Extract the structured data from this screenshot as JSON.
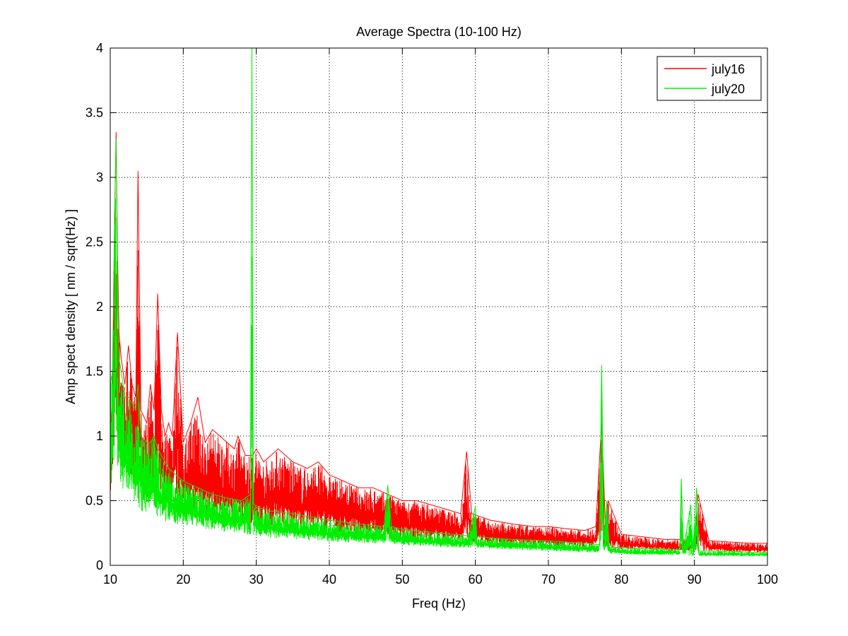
{
  "figure_background": "#ffffff",
  "chart_data": {
    "type": "line",
    "title": "Average Spectra (10-100 Hz)",
    "xlabel": "Freq (Hz)",
    "ylabel": "Amp spect density [ nm / sqrt(Hz) ]",
    "xlim": [
      10,
      100
    ],
    "ylim": [
      0,
      4
    ],
    "x_ticks": [
      10,
      20,
      30,
      40,
      50,
      60,
      70,
      80,
      90,
      100
    ],
    "y_ticks": [
      0,
      0.5,
      1,
      1.5,
      2,
      2.5,
      3,
      3.5,
      4
    ],
    "x_tick_labels": [
      "10",
      "20",
      "30",
      "40",
      "50",
      "60",
      "70",
      "80",
      "90",
      "100"
    ],
    "y_tick_labels": [
      "0",
      "0.5",
      "1",
      "1.5",
      "2",
      "2.5",
      "3",
      "3.5",
      "4"
    ],
    "grid": true,
    "grid_style": "dotted",
    "legend_position": "top-right",
    "series": [
      {
        "name": "july16",
        "color": "#ff0000",
        "x": [
          10,
          10.3,
          10.6,
          10.8,
          11,
          11.2,
          11.5,
          12,
          12.5,
          13,
          13.5,
          13.8,
          14.2,
          15,
          15.5,
          16,
          16.5,
          17,
          17.5,
          18,
          18.5,
          19.2,
          20,
          21,
          22,
          23,
          24,
          25,
          26,
          27,
          27.5,
          28.5,
          29.5,
          30,
          31,
          32,
          33,
          35,
          37,
          38.5,
          40,
          42,
          44,
          46,
          48,
          50,
          52,
          55,
          58,
          58.8,
          59.5,
          62,
          65,
          68,
          70,
          73,
          75,
          76.5,
          77.3,
          77.8,
          78.2,
          80,
          83,
          86,
          88,
          90,
          90.5,
          92,
          95,
          98,
          100
        ],
        "upper": [
          0.9,
          1.3,
          2.7,
          3.35,
          2.4,
          1.8,
          1.6,
          1.4,
          1.7,
          1.4,
          1.3,
          3.05,
          1.2,
          1.1,
          1.4,
          1.2,
          2.1,
          1.2,
          1.0,
          1.1,
          1.0,
          1.8,
          0.95,
          1.1,
          1.3,
          0.95,
          1.05,
          1.0,
          0.95,
          0.9,
          1.0,
          0.85,
          0.85,
          0.9,
          0.8,
          0.85,
          0.9,
          0.8,
          0.75,
          0.8,
          0.7,
          0.65,
          0.6,
          0.6,
          0.55,
          0.5,
          0.5,
          0.45,
          0.4,
          0.88,
          0.4,
          0.35,
          0.32,
          0.3,
          0.3,
          0.28,
          0.27,
          0.3,
          1.12,
          0.3,
          0.5,
          0.24,
          0.22,
          0.2,
          0.2,
          0.19,
          0.55,
          0.19,
          0.18,
          0.17,
          0.17
        ],
        "lower": [
          0.5,
          0.6,
          0.85,
          0.95,
          0.95,
          0.9,
          0.85,
          0.75,
          0.7,
          0.7,
          0.65,
          0.7,
          0.55,
          0.5,
          0.55,
          0.55,
          0.55,
          0.5,
          0.48,
          0.48,
          0.46,
          0.46,
          0.4,
          0.38,
          0.37,
          0.36,
          0.35,
          0.34,
          0.33,
          0.33,
          0.33,
          0.32,
          0.32,
          0.31,
          0.3,
          0.29,
          0.29,
          0.28,
          0.27,
          0.26,
          0.26,
          0.25,
          0.24,
          0.23,
          0.22,
          0.21,
          0.2,
          0.19,
          0.18,
          0.18,
          0.18,
          0.17,
          0.16,
          0.15,
          0.15,
          0.14,
          0.14,
          0.14,
          0.14,
          0.13,
          0.13,
          0.12,
          0.12,
          0.11,
          0.11,
          0.11,
          0.11,
          0.11,
          0.1,
          0.1,
          0.1
        ]
      },
      {
        "name": "july20",
        "color": "#00ee00",
        "x": [
          10,
          10.3,
          10.6,
          10.8,
          11,
          11.2,
          11.5,
          12,
          12.5,
          13,
          13.5,
          13.8,
          14.2,
          15,
          15.5,
          16,
          16.5,
          17,
          17.5,
          18,
          19,
          20,
          22,
          24,
          26,
          28,
          29.2,
          29.4,
          29.6,
          30,
          32,
          35,
          38,
          40,
          44,
          47.5,
          48,
          48.5,
          50,
          55,
          59,
          60,
          60.2,
          65,
          70,
          75,
          77,
          77.3,
          77.6,
          78,
          78.3,
          79,
          82,
          85,
          88,
          88.2,
          88.5,
          89.5,
          89.8,
          90.3,
          90.6,
          92,
          95,
          98,
          100
        ],
        "upper": [
          1.4,
          1.5,
          2.7,
          3.3,
          2.2,
          1.6,
          1.5,
          1.3,
          1.3,
          1.25,
          1.2,
          1.4,
          1.0,
          0.95,
          0.95,
          1.0,
          0.9,
          0.85,
          0.8,
          0.75,
          0.7,
          0.65,
          0.6,
          0.55,
          0.52,
          0.5,
          0.55,
          4.0,
          0.48,
          0.45,
          0.42,
          0.4,
          0.37,
          0.35,
          0.32,
          0.3,
          0.62,
          0.3,
          0.28,
          0.25,
          0.23,
          0.45,
          0.22,
          0.2,
          0.19,
          0.17,
          0.16,
          1.55,
          0.2,
          0.5,
          0.16,
          0.14,
          0.13,
          0.13,
          0.12,
          0.67,
          0.12,
          0.47,
          0.12,
          0.6,
          0.11,
          0.11,
          0.11,
          0.1,
          0.1
        ],
        "lower": [
          0.6,
          0.65,
          0.7,
          0.7,
          0.65,
          0.65,
          0.6,
          0.55,
          0.5,
          0.5,
          0.48,
          0.45,
          0.42,
          0.4,
          0.38,
          0.37,
          0.36,
          0.35,
          0.34,
          0.33,
          0.32,
          0.31,
          0.29,
          0.27,
          0.25,
          0.24,
          0.23,
          0.23,
          0.23,
          0.22,
          0.21,
          0.2,
          0.19,
          0.18,
          0.17,
          0.16,
          0.16,
          0.16,
          0.15,
          0.14,
          0.13,
          0.13,
          0.13,
          0.12,
          0.11,
          0.1,
          0.1,
          0.1,
          0.1,
          0.09,
          0.09,
          0.09,
          0.08,
          0.08,
          0.08,
          0.08,
          0.08,
          0.07,
          0.07,
          0.07,
          0.07,
          0.07,
          0.07,
          0.07,
          0.07
        ]
      }
    ]
  }
}
